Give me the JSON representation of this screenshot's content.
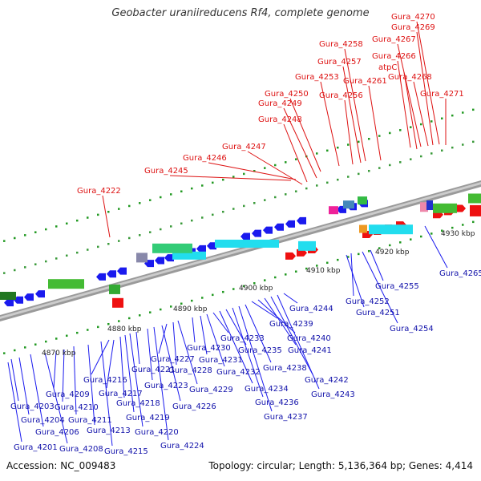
{
  "title": "Geobacter uraniireducens Rf4, complete genome",
  "accession": "Accession: NC_009483",
  "summary": "Topology: circular; Length: 5,136,364 bp; Genes: 4,414",
  "kbp_labels": [
    "4870 kbp",
    "4880 kbp",
    "4890 kbp",
    "4900 kbp",
    "4910 kbp",
    "4920 kbp",
    "4930 kbp"
  ],
  "forward_genes": [
    "Gura_4222",
    "Gura_4245",
    "Gura_4246",
    "Gura_4247",
    "Gura_4248",
    "Gura_4249",
    "Gura_4250",
    "Gura_4253",
    "Gura_4256",
    "Gura_4257",
    "Gura_4258",
    "Gura_4261",
    "atpC",
    "Gura_4266",
    "Gura_4267",
    "Gura_4268",
    "Gura_4269",
    "Gura_4270",
    "Gura_4271"
  ],
  "reverse_genes": [
    "Gura_4201",
    "Gura_4203",
    "Gura_4204",
    "Gura_4206",
    "Gura_4208",
    "Gura_4209",
    "Gura_4210",
    "Gura_4211",
    "Gura_4213",
    "Gura_4215",
    "Gura_4216",
    "Gura_4217",
    "Gura_4218",
    "Gura_4219",
    "Gura_4220",
    "Gura_4221",
    "Gura_4223",
    "Gura_4224",
    "Gura_4226",
    "Gura_4227",
    "Gura_4228",
    "Gura_4229",
    "Gura_4230",
    "Gura_4231",
    "Gura_4232",
    "Gura_4233",
    "Gura_4234",
    "Gura_4235",
    "Gura_4236",
    "Gura_4237",
    "Gura_4238",
    "Gura_4239",
    "Gura_4240",
    "Gura_4241",
    "Gura_4242",
    "Gura_4243",
    "Gura_4244",
    "Gura_4251",
    "Gura_4252",
    "Gura_4254",
    "Gura_4255",
    "Gura_4265"
  ],
  "colors": {
    "forward_gene": "#ee1111",
    "reverse_gene": "#1a1aee",
    "cds_band": "#22ddee",
    "gc_band": "#44bb33",
    "backbone": "#888888",
    "forward_label": "#dd1111",
    "reverse_label": "#1111aa"
  }
}
